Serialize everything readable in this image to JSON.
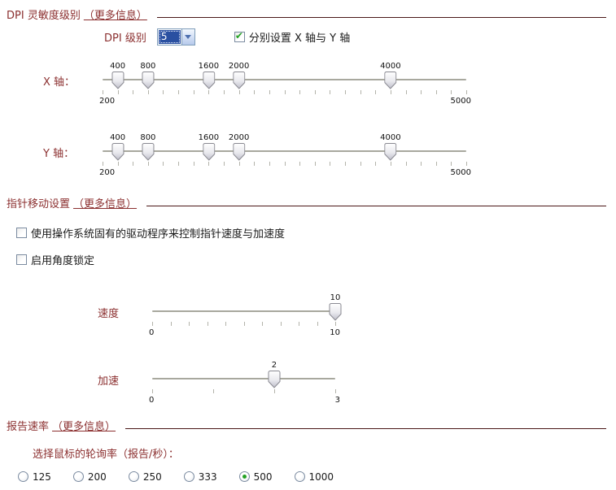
{
  "theme": {
    "accent_red": "#8b2f2f",
    "rule_color": "#4a1717",
    "check_green": "#23a123",
    "selection_blue": "#2a50a1",
    "combo_border": "#7f9db9"
  },
  "dpi_section": {
    "title": "DPI 灵敏度级别",
    "more_info_link": "（更多信息）",
    "dpi_level_label": "DPI 级别",
    "dpi_level_value": "5",
    "separate_xy_label": "分别设置 X 轴与 Y 轴",
    "separate_xy_checked": true,
    "x_axis_label": "X 轴：",
    "y_axis_label": "Y 轴：",
    "x_slider": {
      "min": 200,
      "max": 5000,
      "tick_step": 200,
      "handles": [
        400,
        800,
        1600,
        2000,
        4000
      ],
      "min_label": "200",
      "max_label": "5000"
    },
    "y_slider": {
      "min": 200,
      "max": 5000,
      "tick_step": 200,
      "handles": [
        400,
        800,
        1600,
        2000,
        4000
      ],
      "min_label": "200",
      "max_label": "5000"
    }
  },
  "pointer_section": {
    "title": "指针移动设置",
    "more_info_link": "（更多信息）",
    "os_driver_label": "使用操作系统固有的驱动程序来控制指针速度与加速度",
    "os_driver_checked": false,
    "angle_lock_label": "启用角度锁定",
    "angle_lock_checked": false,
    "speed_label": "速度",
    "speed_slider": {
      "min": 0,
      "max": 10,
      "tick_step": 1,
      "handles": [
        10
      ],
      "min_label": "0",
      "max_label": "10"
    },
    "accel_label": "加速",
    "accel_slider": {
      "min": 0,
      "max": 3,
      "tick_step": 1,
      "handles": [
        2
      ],
      "min_label": "0",
      "max_label": "3"
    }
  },
  "report_section": {
    "title": "报告速率",
    "more_info_link": "（更多信息）",
    "polling_label": "选择鼠标的轮询率（报告/秒）：",
    "options": [
      "125",
      "200",
      "250",
      "333",
      "500",
      "1000"
    ],
    "selected_option": "500"
  }
}
